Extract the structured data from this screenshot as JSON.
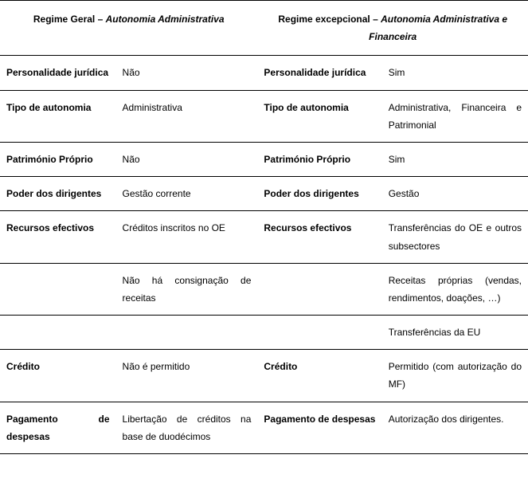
{
  "header": {
    "left_prefix": "Regime Geral – ",
    "left_italic": "Autonomia Administrativa",
    "right_prefix": "Regime excepcional – ",
    "right_italic": "Autonomia Administrativa e Financeira"
  },
  "rows": [
    {
      "l_label": "Personalidade jurídica",
      "l_value": "Não",
      "r_label": "Personalidade jurídica",
      "r_value": "Sim"
    },
    {
      "l_label": "Tipo de autonomia",
      "l_value": "Administrativa",
      "r_label": "Tipo de autonomia",
      "r_value": "Administrativa, Financeira e Patrimonial"
    },
    {
      "l_label": "Património Próprio",
      "l_value": "Não",
      "r_label": "Património Próprio",
      "r_value": "Sim"
    },
    {
      "l_label": "Poder dos dirigentes",
      "l_value": "Gestão corrente",
      "r_label": "Poder dos dirigentes",
      "r_value": "Gestão"
    },
    {
      "l_label": "Recursos efectivos",
      "l_value": "Créditos inscritos no OE",
      "r_label": "Recursos efectivos",
      "r_value": "Transferências do OE e outros subsectores"
    },
    {
      "l_label": "",
      "l_value": "Não há consignação de receitas",
      "r_label": "",
      "r_value": "Receitas próprias (vendas, rendimentos, doações, …)"
    },
    {
      "l_label": "",
      "l_value": "",
      "r_label": "",
      "r_value": "Transferências da EU"
    },
    {
      "l_label": "Crédito",
      "l_value": "Não é permitido",
      "r_label": "Crédito",
      "r_value": "Permitido (com autorização do MF)"
    },
    {
      "l_label": "Pagamento de despesas",
      "l_value": "Libertação de créditos na base de duodécimos",
      "r_label": "Pagamento de despesas",
      "r_value": "Autorização dos dirigentes."
    }
  ]
}
